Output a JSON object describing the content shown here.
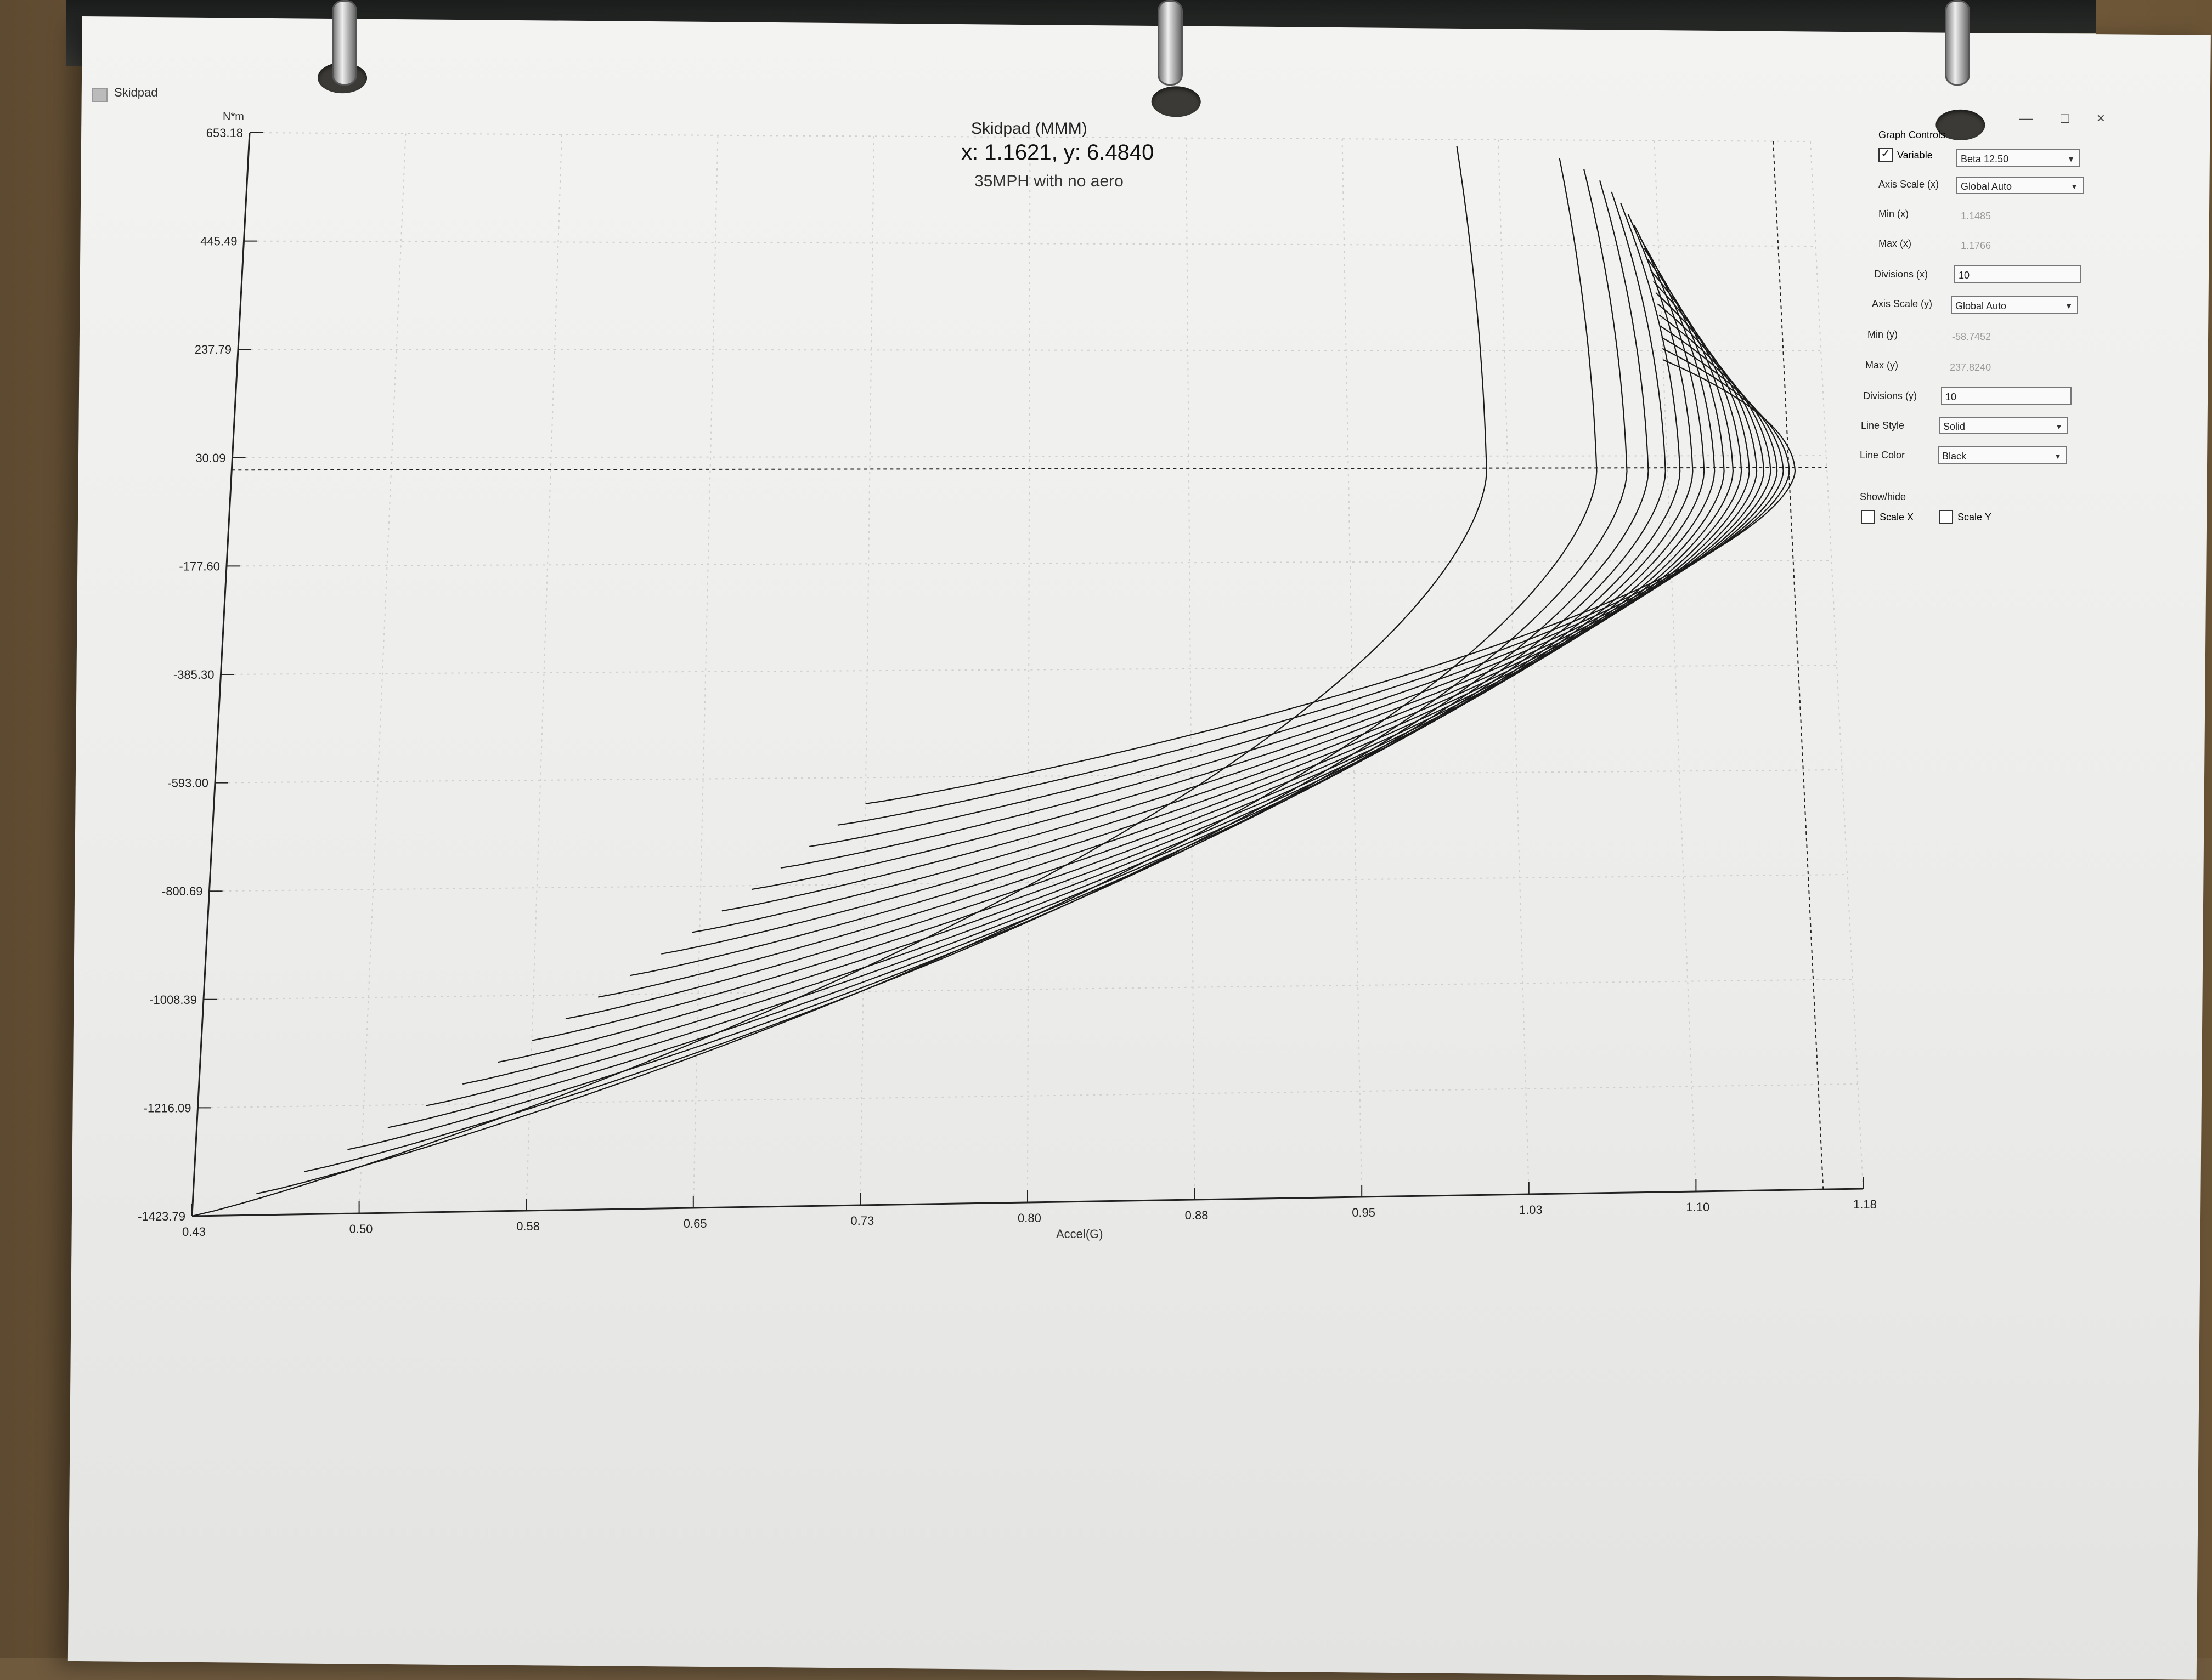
{
  "legend": {
    "label": "Skidpad"
  },
  "chart_data": {
    "type": "line",
    "title": "Skidpad (MMM)",
    "readout": "x: 1.1621, y: 6.4840",
    "subtitle": "35MPH with no aero",
    "xlabel": "Accel(G)",
    "ylabel": "N*m",
    "xlim": [
      0.43,
      1.18
    ],
    "ylim": [
      -1423.79,
      653.18
    ],
    "x_ticks": [
      "0.43",
      "0.50",
      "0.58",
      "0.65",
      "0.73",
      "0.80",
      "0.88",
      "0.95",
      "1.03",
      "1.10",
      "1.18"
    ],
    "y_ticks": [
      "653.18",
      "445.49",
      "237.79",
      "30.09",
      "-177.60",
      "-385.30",
      "-593.00",
      "-800.69",
      "-1008.39",
      "-1216.09",
      "-1423.79"
    ],
    "grid": true,
    "crosshair": {
      "x": 1.1621,
      "y": 6.484
    },
    "series_count": 20
  },
  "controls": {
    "title": "Graph Controls",
    "window_buttons": [
      "—",
      "□",
      "×"
    ],
    "variable_label": "Variable",
    "variable_checked": true,
    "variable_value": "Beta 12.50",
    "axis_scale_x_label": "Axis Scale (x)",
    "axis_scale_x_value": "Global Auto",
    "min_x_label": "Min (x)",
    "min_x_value": "1.1485",
    "max_x_label": "Max (x)",
    "max_x_value": "1.1766",
    "divisions_x_label": "Divisions (x)",
    "divisions_x_value": "10",
    "axis_scale_y_label": "Axis Scale (y)",
    "axis_scale_y_value": "Global Auto",
    "min_y_label": "Min (y)",
    "min_y_value": "-58.7452",
    "max_y_label": "Max (y)",
    "max_y_value": "237.8240",
    "divisions_y_label": "Divisions (y)",
    "divisions_y_value": "10",
    "line_style_label": "Line Style",
    "line_style_value": "Solid",
    "line_color_label": "Line Color",
    "line_color_value": "Black",
    "show_hide_label": "Show/hide",
    "scale_x_label": "Scale X",
    "scale_y_label": "Scale Y"
  }
}
